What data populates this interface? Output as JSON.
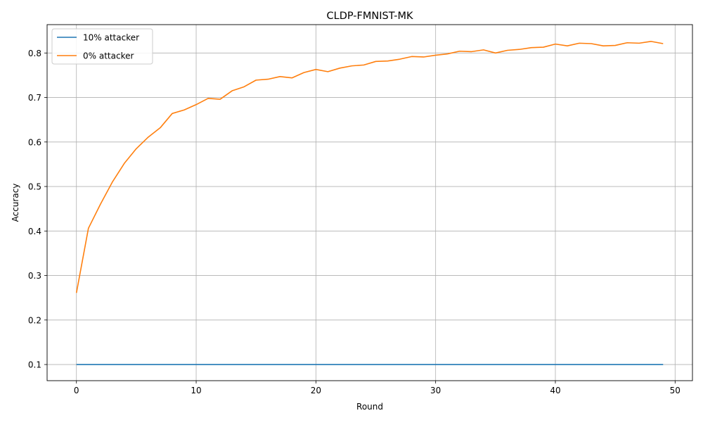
{
  "chart_data": {
    "type": "line",
    "title": "CLDP-FMNIST-MK",
    "xlabel": "Round",
    "ylabel": "Accuracy",
    "xlim": [
      -2.45,
      51.45
    ],
    "ylim": [
      0.0637,
      0.8637
    ],
    "xticks": [
      0,
      10,
      20,
      30,
      40,
      50
    ],
    "yticks": [
      0.1,
      0.2,
      0.3,
      0.4,
      0.5,
      0.6,
      0.7,
      0.8
    ],
    "grid": true,
    "legend_position": "top-left",
    "x": [
      0,
      1,
      2,
      3,
      4,
      5,
      6,
      7,
      8,
      9,
      10,
      11,
      12,
      13,
      14,
      15,
      16,
      17,
      18,
      19,
      20,
      21,
      22,
      23,
      24,
      25,
      26,
      27,
      28,
      29,
      30,
      31,
      32,
      33,
      34,
      35,
      36,
      37,
      38,
      39,
      40,
      41,
      42,
      43,
      44,
      45,
      46,
      47,
      48,
      49
    ],
    "series": [
      {
        "name": "10% attacker",
        "color": "#1f77b4",
        "values": [
          0.1,
          0.1,
          0.1,
          0.1,
          0.1,
          0.1,
          0.1,
          0.1,
          0.1,
          0.1,
          0.1,
          0.1,
          0.1,
          0.1,
          0.1,
          0.1,
          0.1,
          0.1,
          0.1,
          0.1,
          0.1,
          0.1,
          0.1,
          0.1,
          0.1,
          0.1,
          0.1,
          0.1,
          0.1,
          0.1,
          0.1,
          0.1,
          0.1,
          0.1,
          0.1,
          0.1,
          0.1,
          0.1,
          0.1,
          0.1,
          0.1,
          0.1,
          0.1,
          0.1,
          0.1,
          0.1,
          0.1,
          0.1,
          0.1,
          0.1
        ]
      },
      {
        "name": "0% attacker",
        "color": "#ff7f0e",
        "values": [
          0.261,
          0.406,
          0.46,
          0.51,
          0.552,
          0.585,
          0.611,
          0.632,
          0.664,
          0.672,
          0.684,
          0.698,
          0.696,
          0.715,
          0.724,
          0.739,
          0.741,
          0.747,
          0.744,
          0.756,
          0.763,
          0.758,
          0.766,
          0.771,
          0.773,
          0.781,
          0.782,
          0.786,
          0.792,
          0.791,
          0.795,
          0.798,
          0.804,
          0.803,
          0.807,
          0.8,
          0.806,
          0.808,
          0.812,
          0.813,
          0.82,
          0.816,
          0.822,
          0.821,
          0.816,
          0.817,
          0.823,
          0.822,
          0.826,
          0.821
        ]
      }
    ]
  }
}
